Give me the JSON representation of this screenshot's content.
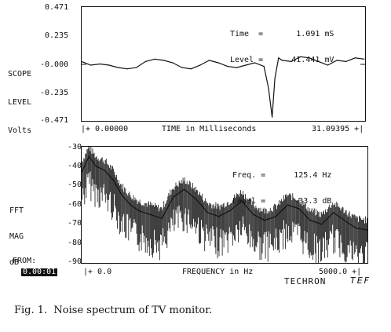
{
  "scope": {
    "ylabel": [
      "SCOPE",
      "LEVEL",
      "Volts"
    ],
    "yticks": [
      "0.471",
      "0.235",
      "-0.000",
      "-0.235",
      "-0.471"
    ],
    "readout": [
      "Time  =       1.091 mS",
      "Level =      41.441 mV"
    ],
    "x_start": "|+ 0.00000",
    "x_label": "TIME in Milliseconds",
    "x_end": "31.09395 +|"
  },
  "fft": {
    "ylabel": [
      "FFT",
      "MAG",
      "dB"
    ],
    "yticks": [
      "-30",
      "-40",
      "-50",
      "-60",
      "-70",
      "-80",
      "-90"
    ],
    "readout": [
      "Freq. =      125.4 Hz",
      "Level =      -33.3 dB"
    ],
    "x_start": "|+ 0.0",
    "x_label": "FREQUENCY in Hz",
    "x_end": "5000.0 +|"
  },
  "from_label": "FROM:",
  "from_value": "0.00:01",
  "brand": "TECHRON",
  "brand_logo": "TEF",
  "caption": "Fig. 1.  Noise spectrum of TV monitor.",
  "chart_data": [
    {
      "type": "line",
      "title": "",
      "ylabel": "SCOPE LEVEL Volts",
      "xlabel": "TIME in Milliseconds",
      "xlim": [
        0.0,
        31.09395
      ],
      "ylim": [
        -0.471,
        0.471
      ],
      "x": [
        0,
        1,
        2,
        3,
        4,
        5,
        6,
        7,
        8,
        9,
        10,
        11,
        12,
        13,
        14,
        15,
        16,
        17,
        18,
        19,
        20,
        20.5,
        20.9,
        21.2,
        21.6,
        22,
        23,
        24,
        25,
        26,
        27,
        28,
        29,
        30,
        31
      ],
      "y": [
        0.02,
        -0.01,
        0.0,
        -0.01,
        -0.03,
        -0.04,
        -0.03,
        0.02,
        0.04,
        0.03,
        0.01,
        -0.03,
        -0.04,
        -0.01,
        0.03,
        0.01,
        -0.02,
        -0.03,
        -0.01,
        0.01,
        -0.02,
        -0.2,
        -0.44,
        -0.12,
        0.05,
        0.03,
        0.02,
        0.06,
        0.05,
        0.02,
        -0.01,
        0.03,
        0.02,
        0.05,
        0.04
      ]
    },
    {
      "type": "line",
      "title": "",
      "ylabel": "FFT MAG dB",
      "xlabel": "FREQUENCY in Hz",
      "xlim": [
        0.0,
        5000.0
      ],
      "ylim": [
        -90,
        -30
      ],
      "x": [
        0,
        125,
        250,
        400,
        550,
        700,
        850,
        1000,
        1200,
        1400,
        1600,
        1800,
        2000,
        2200,
        2400,
        2600,
        2800,
        3000,
        3200,
        3400,
        3600,
        3800,
        4000,
        4200,
        4400,
        4600,
        4800,
        5000
      ],
      "y": [
        -43,
        -35,
        -40,
        -42,
        -47,
        -55,
        -60,
        -63,
        -65,
        -67,
        -56,
        -52,
        -57,
        -64,
        -66,
        -63,
        -58,
        -65,
        -68,
        -66,
        -60,
        -62,
        -68,
        -70,
        -64,
        -68,
        -72,
        -73
      ]
    }
  ]
}
